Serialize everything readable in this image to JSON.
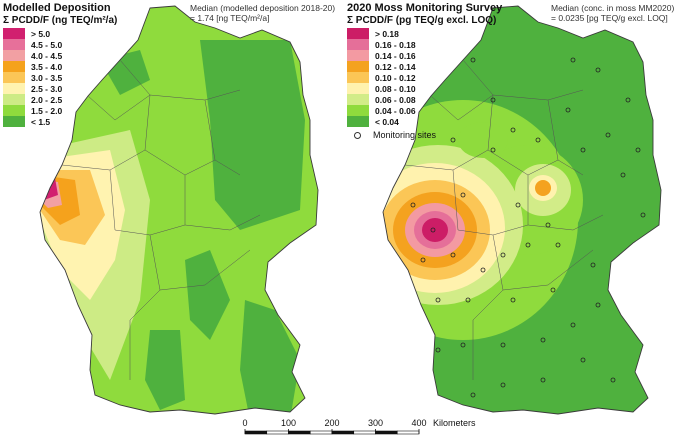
{
  "left_map": {
    "title": "Modelled Deposition",
    "subtitle": "Σ PCDD/F (ng TEQ/m²/a)",
    "median_line1": "Median (modelled deposition 2018-20)",
    "median_line2": "= 1.74 [ng TEQ/m²/a]",
    "legend": [
      {
        "label": "> 5.0",
        "color": "#d1206f"
      },
      {
        "label": "4.5 - 5.0",
        "color": "#e7709a"
      },
      {
        "label": "4.0 - 4.5",
        "color": "#f2a0a3"
      },
      {
        "label": "3.5 - 4.0",
        "color": "#f5a21c"
      },
      {
        "label": "3.0 - 3.5",
        "color": "#fbc657"
      },
      {
        "label": "2.5 - 3.0",
        "color": "#fff3b0"
      },
      {
        "label": "2.0 - 2.5",
        "color": "#cdeb85"
      },
      {
        "label": "1.5 - 2.0",
        "color": "#8fdb3d"
      },
      {
        "label": "< 1.5",
        "color": "#4fb13e"
      }
    ]
  },
  "right_map": {
    "title": "2020 Moss Monitoring Survey",
    "subtitle": "Σ PCDD/F (pg TEQ/g excl. LOQ)",
    "median_line1": "Median (conc. in moss MM2020)",
    "median_line2": "= 0.0235 [pg TEQ/g excl. LOQ]",
    "legend": [
      {
        "label": "> 0.18",
        "color": "#cc1d66"
      },
      {
        "label": "0.16 - 0.18",
        "color": "#e56f99"
      },
      {
        "label": "0.14 - 0.16",
        "color": "#f39aa2"
      },
      {
        "label": "0.12 - 0.14",
        "color": "#f4a21f"
      },
      {
        "label": "0.10 - 0.12",
        "color": "#fbc656"
      },
      {
        "label": "0.08 - 0.10",
        "color": "#fff2ae"
      },
      {
        "label": "0.06 - 0.08",
        "color": "#d2ec88"
      },
      {
        "label": "0.04 - 0.06",
        "color": "#8fdb3d"
      },
      {
        "label": "< 0.04",
        "color": "#4fb13e"
      }
    ],
    "sites_label": "Monitoring sites"
  },
  "scale_bar": {
    "ticks": [
      "0",
      "100",
      "200",
      "300",
      "400"
    ],
    "unit": "Kilometers"
  },
  "colors": {
    "border": "#3a3a3a",
    "background": "#ffffff"
  }
}
